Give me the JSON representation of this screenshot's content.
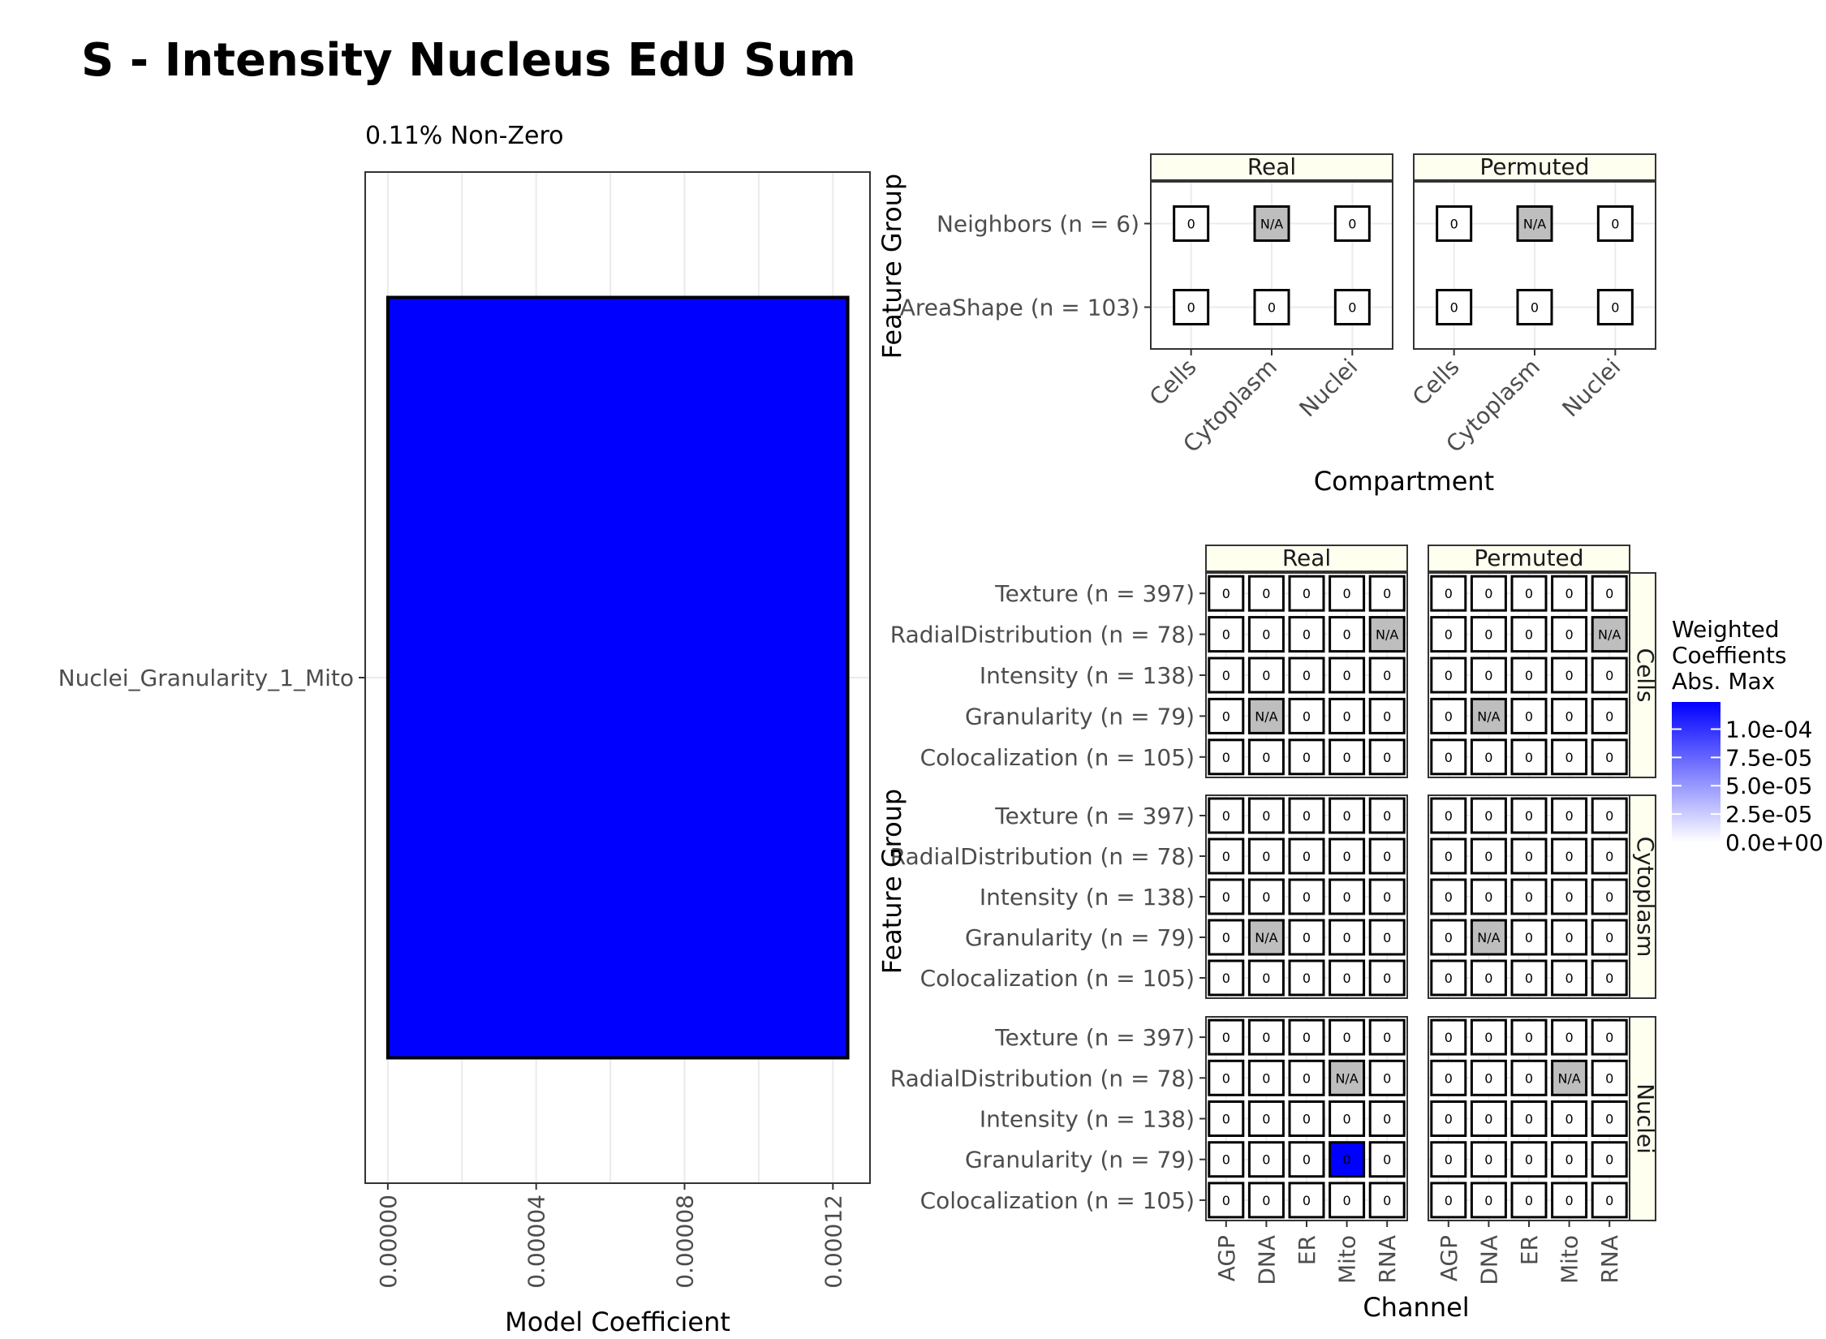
{
  "title": "S - Intensity Nucleus EdU Sum",
  "colors": {
    "bar": "#0000ff",
    "na_tile": "#bebebe",
    "gradient_high": "#0000ff",
    "gradient_low": "#ffffff",
    "strip_fill": "#fffff0",
    "grid": "#ebebeb",
    "axis_text": "#4d4d4d"
  },
  "chart_data": [
    {
      "type": "bar",
      "orientation": "horizontal",
      "subtitle": "0.11% Non-Zero",
      "categories": [
        "Nuclei_Granularity_1_Mito"
      ],
      "values": [
        0.000124
      ],
      "xlabel": "Model Coefficient",
      "xlim": [
        -6.1e-06,
        0.00013
      ],
      "ticks": [
        0.0,
        4e-05,
        8e-05,
        0.00012
      ],
      "tick_labels": [
        "0.00000",
        "0.00004",
        "0.00008",
        "0.00012"
      ]
    },
    {
      "type": "heatmap",
      "facets": [
        "Real",
        "Permuted"
      ],
      "x": [
        "Cells",
        "Cytoplasm",
        "Nuclei"
      ],
      "y": [
        "AreaShape (n = 103)",
        "Neighbors (n = 6)"
      ],
      "xlabel": "Compartment",
      "ylabel": "Feature Group",
      "values": {
        "Real": [
          [
            "0",
            "0",
            "0"
          ],
          [
            "0",
            "N/A",
            "0"
          ]
        ],
        "Permuted": [
          [
            "0",
            "0",
            "0"
          ],
          [
            "0",
            "N/A",
            "0"
          ]
        ]
      }
    },
    {
      "type": "heatmap",
      "facet_cols": [
        "Real",
        "Permuted"
      ],
      "facet_rows": [
        "Cells",
        "Cytoplasm",
        "Nuclei"
      ],
      "x": [
        "AGP",
        "DNA",
        "ER",
        "Mito",
        "RNA"
      ],
      "y": [
        "Colocalization (n = 105)",
        "Granularity (n = 79)",
        "Intensity (n = 138)",
        "RadialDistribution (n = 78)",
        "Texture (n = 397)"
      ],
      "xlabel": "Channel",
      "ylabel": "Feature Group",
      "values": {
        "Cells": {
          "Real": [
            [
              "0",
              "0",
              "0",
              "0",
              "0"
            ],
            [
              "0",
              "N/A",
              "0",
              "0",
              "0"
            ],
            [
              "0",
              "0",
              "0",
              "0",
              "0"
            ],
            [
              "0",
              "0",
              "0",
              "0",
              "N/A"
            ],
            [
              "0",
              "0",
              "0",
              "0",
              "0"
            ]
          ],
          "Permuted": [
            [
              "0",
              "0",
              "0",
              "0",
              "0"
            ],
            [
              "0",
              "N/A",
              "0",
              "0",
              "0"
            ],
            [
              "0",
              "0",
              "0",
              "0",
              "0"
            ],
            [
              "0",
              "0",
              "0",
              "0",
              "N/A"
            ],
            [
              "0",
              "0",
              "0",
              "0",
              "0"
            ]
          ]
        },
        "Cytoplasm": {
          "Real": [
            [
              "0",
              "0",
              "0",
              "0",
              "0"
            ],
            [
              "0",
              "N/A",
              "0",
              "0",
              "0"
            ],
            [
              "0",
              "0",
              "0",
              "0",
              "0"
            ],
            [
              "0",
              "0",
              "0",
              "0",
              "0"
            ],
            [
              "0",
              "0",
              "0",
              "0",
              "0"
            ]
          ],
          "Permuted": [
            [
              "0",
              "0",
              "0",
              "0",
              "0"
            ],
            [
              "0",
              "N/A",
              "0",
              "0",
              "0"
            ],
            [
              "0",
              "0",
              "0",
              "0",
              "0"
            ],
            [
              "0",
              "0",
              "0",
              "0",
              "0"
            ],
            [
              "0",
              "0",
              "0",
              "0",
              "0"
            ]
          ]
        },
        "Nuclei": {
          "Real": [
            [
              "0",
              "0",
              "0",
              "0",
              "0"
            ],
            [
              "0",
              "0",
              "0",
              "0.000124",
              "0"
            ],
            [
              "0",
              "0",
              "0",
              "0",
              "0"
            ],
            [
              "0",
              "0",
              "0",
              "N/A",
              "0"
            ],
            [
              "0",
              "0",
              "0",
              "0",
              "0"
            ]
          ],
          "Permuted": [
            [
              "0",
              "0",
              "0",
              "0",
              "0"
            ],
            [
              "0",
              "0",
              "0",
              "0",
              "0"
            ],
            [
              "0",
              "0",
              "0",
              "0",
              "0"
            ],
            [
              "0",
              "0",
              "0",
              "N/A",
              "0"
            ],
            [
              "0",
              "0",
              "0",
              "0",
              "0"
            ]
          ]
        }
      },
      "cell_labels": {
        "Nuclei": {
          "Real": [
            [
              "0",
              "0",
              "0",
              "0",
              "0"
            ],
            [
              "0",
              "0",
              "0",
              "0",
              "0"
            ],
            [
              "0",
              "0",
              "0",
              "0",
              "0"
            ],
            [
              "0",
              "0",
              "0",
              "N/A",
              "0"
            ],
            [
              "0",
              "0",
              "0",
              "0",
              "0"
            ]
          ]
        }
      },
      "legend": {
        "title": [
          "Weighted",
          "Coeffients",
          "Abs. Max"
        ],
        "range": [
          0,
          0.000124
        ],
        "ticks": [
          0.0001,
          7.5e-05,
          5e-05,
          2.5e-05,
          0.0
        ],
        "tick_labels": [
          "1.0e-04",
          "7.5e-05",
          "5.0e-05",
          "2.5e-05",
          "0.0e+00"
        ]
      }
    }
  ]
}
